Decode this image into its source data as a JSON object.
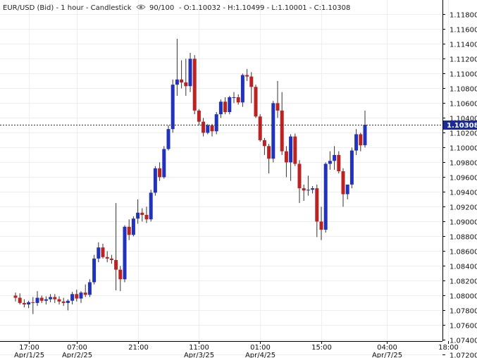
{
  "header": {
    "symbol": "EUR/USD (Bid) - 1 hour - Candlestick",
    "eye_icon": "eye-icon",
    "zoom": "90/100",
    "ohlc": "- O:1.10032 - H:1.10499 - L:1.10001 - C:1.10308"
  },
  "colors": {
    "up": "#2233bb",
    "down": "#bb2222",
    "wick": "#333333",
    "grid": "#eeeeee",
    "axis": "#000000",
    "last_bg": "#1a2a9a"
  },
  "chart_data": {
    "type": "candlestick",
    "symbol": "EUR/USD",
    "price_type": "Bid",
    "interval": "1 hour",
    "last_price": 1.10308,
    "last_price_label": "1.10308",
    "ylim": [
      1.072,
      1.119
    ],
    "y_ticks": [
      "1.11800",
      "1.11600",
      "1.11400",
      "1.11200",
      "1.11000",
      "1.10800",
      "1.10600",
      "1.10400",
      "1.10200",
      "1.10000",
      "1.09800",
      "1.09600",
      "1.09400",
      "1.09200",
      "1.09000",
      "1.08800",
      "1.08600",
      "1.08400",
      "1.08200",
      "1.08000",
      "1.07800",
      "1.07600",
      "1.07400",
      "1.07200"
    ],
    "x_ticks": [
      {
        "time": "17:00",
        "date": "Apr/1/25",
        "idx": 3
      },
      {
        "time": "07:00",
        "date": "Apr/2/25",
        "idx": 14
      },
      {
        "time": "21:00",
        "date": "",
        "idx": 28
      },
      {
        "time": "11:00",
        "date": "Apr/3/25",
        "idx": 42
      },
      {
        "time": "01:00",
        "date": "Apr/4/25",
        "idx": 56
      },
      {
        "time": "15:00",
        "date": "",
        "idx": 70
      },
      {
        "time": "04:00",
        "date": "Apr/7/25",
        "idx": 85
      },
      {
        "time": "18:00",
        "date": "",
        "idx": 99
      }
    ],
    "candles": [
      [
        1.08,
        1.0804,
        1.0792,
        1.0797
      ],
      [
        1.0797,
        1.0803,
        1.0788,
        1.079
      ],
      [
        1.079,
        1.0795,
        1.0784,
        1.0788
      ],
      [
        1.0788,
        1.0793,
        1.0783,
        1.0791
      ],
      [
        1.0791,
        1.0798,
        1.0775,
        1.079
      ],
      [
        1.079,
        1.0806,
        1.0786,
        1.0797
      ],
      [
        1.0797,
        1.08,
        1.079,
        1.0793
      ],
      [
        1.0793,
        1.0799,
        1.0788,
        1.0795
      ],
      [
        1.0795,
        1.0802,
        1.0791,
        1.0798
      ],
      [
        1.0798,
        1.0802,
        1.079,
        1.0795
      ],
      [
        1.0795,
        1.0799,
        1.0788,
        1.0792
      ],
      [
        1.0792,
        1.0797,
        1.0786,
        1.079
      ],
      [
        1.079,
        1.0795,
        1.078,
        1.0793
      ],
      [
        1.0793,
        1.0805,
        1.0788,
        1.0802
      ],
      [
        1.0802,
        1.0808,
        1.0792,
        1.0796
      ],
      [
        1.0796,
        1.0806,
        1.079,
        1.0804
      ],
      [
        1.0804,
        1.0815,
        1.0798,
        1.0801
      ],
      [
        1.0801,
        1.0822,
        1.0798,
        1.0818
      ],
      [
        1.0818,
        1.0855,
        1.0815,
        1.085
      ],
      [
        1.085,
        1.0872,
        1.0845,
        1.0865
      ],
      [
        1.0865,
        1.087,
        1.085,
        1.0852
      ],
      [
        1.0852,
        1.086,
        1.0845,
        1.085
      ],
      [
        1.085,
        1.0855,
        1.0843,
        1.0848
      ],
      [
        1.0848,
        1.0925,
        1.0807,
        1.0835
      ],
      [
        1.0835,
        1.084,
        1.0806,
        1.0822
      ],
      [
        1.0822,
        1.0895,
        1.0818,
        1.0893
      ],
      [
        1.0893,
        1.0903,
        1.0875,
        1.0882
      ],
      [
        1.0882,
        1.0907,
        1.088,
        1.0904
      ],
      [
        1.0904,
        1.093,
        1.0897,
        1.0912
      ],
      [
        1.0912,
        1.0918,
        1.09,
        1.0909
      ],
      [
        1.0909,
        1.092,
        1.0898,
        1.0903
      ],
      [
        1.0903,
        1.0943,
        1.09,
        1.0939
      ],
      [
        1.0939,
        1.0975,
        1.0935,
        1.0972
      ],
      [
        1.0972,
        1.098,
        1.0955,
        1.096
      ],
      [
        1.096,
        1.1002,
        1.0958,
        1.0998
      ],
      [
        1.0998,
        1.103,
        1.0996,
        1.1025
      ],
      [
        1.1025,
        1.1092,
        1.102,
        1.1085
      ],
      [
        1.1085,
        1.1147,
        1.107,
        1.1092
      ],
      [
        1.1092,
        1.1118,
        1.108,
        1.1088
      ],
      [
        1.1088,
        1.112,
        1.107,
        1.1083
      ],
      [
        1.1083,
        1.1128,
        1.1075,
        1.112
      ],
      [
        1.112,
        1.1125,
        1.1045,
        1.105
      ],
      [
        1.105,
        1.1052,
        1.103,
        1.1035
      ],
      [
        1.1035,
        1.104,
        1.1015,
        1.102
      ],
      [
        1.102,
        1.1032,
        1.1018,
        1.103
      ],
      [
        1.103,
        1.1032,
        1.1015,
        1.1022
      ],
      [
        1.1022,
        1.1048,
        1.1018,
        1.1045
      ],
      [
        1.1045,
        1.1065,
        1.104,
        1.1062
      ],
      [
        1.1062,
        1.1068,
        1.1045,
        1.1048
      ],
      [
        1.1048,
        1.107,
        1.1045,
        1.1068
      ],
      [
        1.1068,
        1.1075,
        1.106,
        1.1068
      ],
      [
        1.1068,
        1.1072,
        1.1058,
        1.1061
      ],
      [
        1.1061,
        1.11,
        1.1055,
        1.1098
      ],
      [
        1.1098,
        1.1106,
        1.109,
        1.1096
      ],
      [
        1.1096,
        1.1102,
        1.106,
        1.1082
      ],
      [
        1.1082,
        1.1085,
        1.104,
        1.1042
      ],
      [
        1.1042,
        1.1045,
        1.1008,
        1.101
      ],
      [
        1.101,
        1.1013,
        1.099,
        1.1002
      ],
      [
        1.1002,
        1.1005,
        1.0965,
        1.0985
      ],
      [
        1.0985,
        1.1063,
        1.098,
        1.106
      ],
      [
        1.106,
        1.109,
        1.104,
        1.105
      ],
      [
        1.105,
        1.1075,
        1.099,
        1.0995
      ],
      [
        1.0995,
        1.1002,
        1.096,
        1.098
      ],
      [
        1.098,
        1.1018,
        1.0955,
        1.1015
      ],
      [
        1.1015,
        1.1019,
        1.0975,
        1.0978
      ],
      [
        1.0978,
        1.0983,
        1.0925,
        1.0945
      ],
      [
        1.0945,
        1.095,
        1.0928,
        1.0942
      ],
      [
        1.0942,
        1.0962,
        1.0935,
        1.0943
      ],
      [
        1.0943,
        1.0948,
        1.0938,
        1.0945
      ],
      [
        1.0945,
        1.095,
        1.0879,
        1.09
      ],
      [
        1.09,
        1.092,
        1.0875,
        1.0889
      ],
      [
        1.0889,
        1.098,
        1.0885,
        1.0978
      ],
      [
        1.0978,
        1.0995,
        1.097,
        1.0982
      ],
      [
        1.0982,
        1.1002,
        1.097,
        1.099
      ],
      [
        1.099,
        1.0995,
        1.0965,
        1.0968
      ],
      [
        1.0968,
        1.0972,
        1.092,
        1.0937
      ],
      [
        1.0937,
        1.095,
        1.093,
        1.095
      ],
      [
        1.095,
        1.1,
        1.0945,
        1.0996
      ],
      [
        1.0996,
        1.1025,
        1.099,
        1.1018
      ],
      [
        1.1018,
        1.102,
        1.0995,
        1.1003
      ],
      [
        1.10032,
        1.10499,
        1.10001,
        1.10308
      ]
    ]
  }
}
